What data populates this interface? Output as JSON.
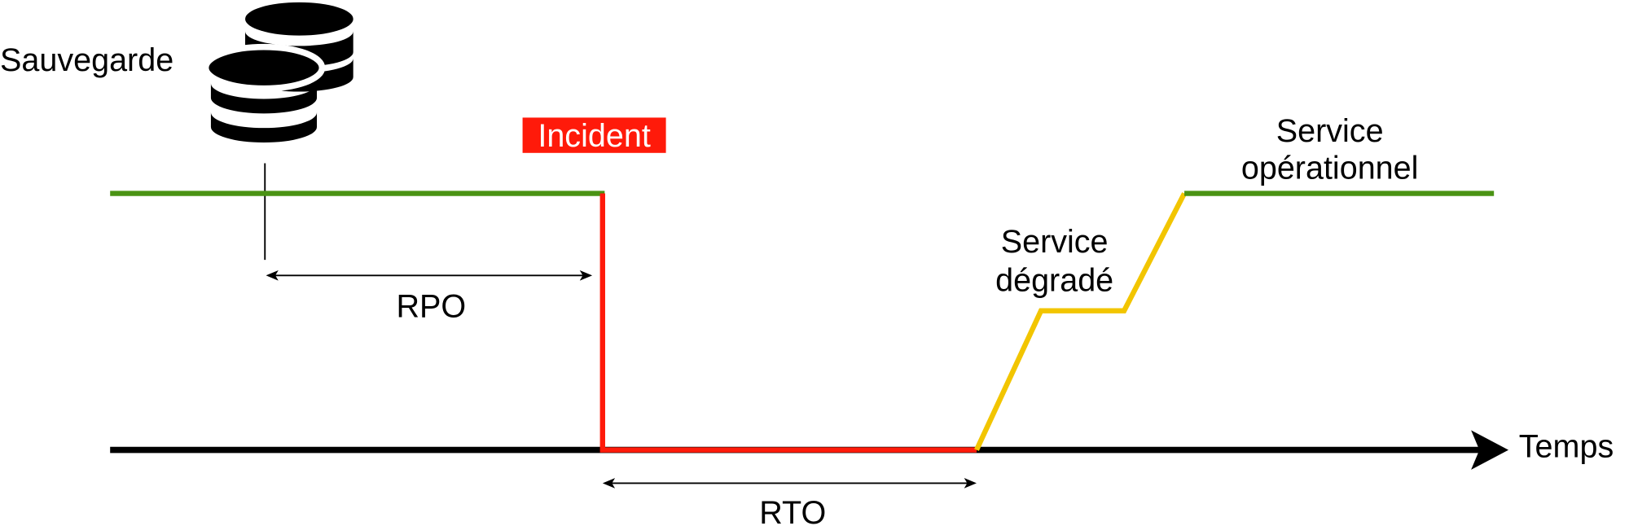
{
  "labels": {
    "backup": "Sauvegarde",
    "incident": "Incident",
    "rpo": "RPO",
    "rto": "RTO",
    "time_axis": "Temps",
    "degraded_line1": "Service",
    "degraded_line2": "dégradé",
    "operational_line1": "Service",
    "operational_line2": "opérationnel"
  },
  "icons": {
    "backup": "database-stack-icon"
  },
  "colors": {
    "operational": "#4a9314",
    "incident": "#ff1a0a",
    "degraded": "#f2c500",
    "axis": "#000000"
  }
}
